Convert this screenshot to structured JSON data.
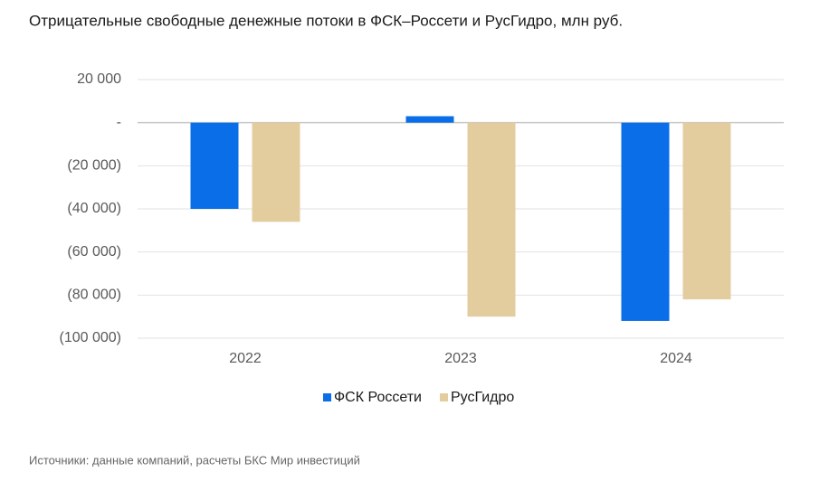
{
  "chart_data": {
    "type": "bar",
    "title": "Отрицательные свободные денежные потоки в ФСК–Россети и РусГидро, млн руб.",
    "source": "Источники: данные компаний, расчеты БКС Мир инвестиций",
    "categories": [
      "2022",
      "2023",
      "2024"
    ],
    "series": [
      {
        "name": "ФСК Россети",
        "color": "#0a6ee8",
        "values": [
          -40000,
          3000,
          -92000
        ]
      },
      {
        "name": "РусГидро",
        "color": "#e3cd9f",
        "values": [
          -46000,
          -90000,
          -82000
        ]
      }
    ],
    "ylim": [
      -100000,
      20000
    ],
    "yticks": [
      {
        "value": -100000,
        "label": "(100 000)"
      },
      {
        "value": -80000,
        "label": "(80 000)"
      },
      {
        "value": -60000,
        "label": "(60 000)"
      },
      {
        "value": -40000,
        "label": "(40 000)"
      },
      {
        "value": -20000,
        "label": "(20 000)"
      },
      {
        "value": 0,
        "label": "-"
      },
      {
        "value": 20000,
        "label": "20 000"
      }
    ],
    "grid": true,
    "legend": "bottom"
  }
}
